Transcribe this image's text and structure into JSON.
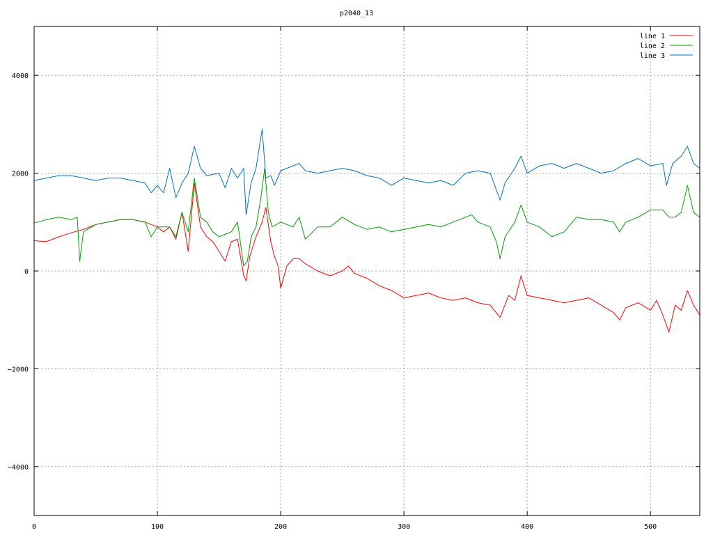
{
  "chart_data": {
    "type": "line",
    "title": "p2040_13",
    "xlabel": "",
    "ylabel": "",
    "xlim": [
      0,
      540
    ],
    "ylim": [
      -5000,
      5000
    ],
    "x_ticks": [
      0,
      100,
      200,
      300,
      400,
      500
    ],
    "y_ticks": [
      -4000,
      -2000,
      0,
      2000,
      4000
    ],
    "grid": true,
    "legend_position": "top-right",
    "series": [
      {
        "name": "line 1",
        "color": "#ff0000",
        "points": [
          [
            0,
            620
          ],
          [
            10,
            600
          ],
          [
            20,
            700
          ],
          [
            30,
            780
          ],
          [
            40,
            850
          ],
          [
            50,
            950
          ],
          [
            60,
            1000
          ],
          [
            70,
            1050
          ],
          [
            80,
            1050
          ],
          [
            90,
            1000
          ],
          [
            100,
            900
          ],
          [
            105,
            800
          ],
          [
            110,
            900
          ],
          [
            115,
            650
          ],
          [
            120,
            1200
          ],
          [
            125,
            400
          ],
          [
            130,
            1800
          ],
          [
            135,
            900
          ],
          [
            140,
            700
          ],
          [
            145,
            600
          ],
          [
            150,
            400
          ],
          [
            155,
            200
          ],
          [
            160,
            600
          ],
          [
            165,
            650
          ],
          [
            170,
            -100
          ],
          [
            172,
            -200
          ],
          [
            175,
            300
          ],
          [
            180,
            700
          ],
          [
            185,
            1000
          ],
          [
            188,
            1300
          ],
          [
            192,
            600
          ],
          [
            195,
            300
          ],
          [
            198,
            100
          ],
          [
            200,
            -350
          ],
          [
            205,
            100
          ],
          [
            210,
            250
          ],
          [
            215,
            250
          ],
          [
            220,
            150
          ],
          [
            230,
            0
          ],
          [
            240,
            -100
          ],
          [
            250,
            0
          ],
          [
            255,
            100
          ],
          [
            260,
            -50
          ],
          [
            270,
            -150
          ],
          [
            280,
            -300
          ],
          [
            290,
            -400
          ],
          [
            300,
            -550
          ],
          [
            310,
            -500
          ],
          [
            320,
            -450
          ],
          [
            330,
            -550
          ],
          [
            340,
            -600
          ],
          [
            350,
            -550
          ],
          [
            360,
            -650
          ],
          [
            370,
            -700
          ],
          [
            378,
            -950
          ],
          [
            385,
            -500
          ],
          [
            390,
            -600
          ],
          [
            395,
            -100
          ],
          [
            400,
            -500
          ],
          [
            410,
            -550
          ],
          [
            420,
            -600
          ],
          [
            430,
            -650
          ],
          [
            440,
            -600
          ],
          [
            450,
            -550
          ],
          [
            460,
            -700
          ],
          [
            470,
            -850
          ],
          [
            475,
            -1000
          ],
          [
            480,
            -750
          ],
          [
            490,
            -650
          ],
          [
            500,
            -800
          ],
          [
            505,
            -600
          ],
          [
            510,
            -900
          ],
          [
            515,
            -1250
          ],
          [
            520,
            -700
          ],
          [
            525,
            -800
          ],
          [
            530,
            -400
          ],
          [
            535,
            -700
          ],
          [
            540,
            -900
          ]
        ]
      },
      {
        "name": "line 2",
        "color": "#00a000",
        "points": [
          [
            0,
            980
          ],
          [
            10,
            1050
          ],
          [
            20,
            1100
          ],
          [
            30,
            1050
          ],
          [
            35,
            1100
          ],
          [
            37,
            200
          ],
          [
            40,
            800
          ],
          [
            50,
            950
          ],
          [
            60,
            1000
          ],
          [
            70,
            1050
          ],
          [
            80,
            1050
          ],
          [
            90,
            1000
          ],
          [
            95,
            700
          ],
          [
            100,
            900
          ],
          [
            110,
            900
          ],
          [
            115,
            700
          ],
          [
            120,
            1200
          ],
          [
            125,
            800
          ],
          [
            130,
            1900
          ],
          [
            135,
            1100
          ],
          [
            140,
            1000
          ],
          [
            145,
            800
          ],
          [
            150,
            700
          ],
          [
            160,
            800
          ],
          [
            165,
            1000
          ],
          [
            170,
            100
          ],
          [
            173,
            200
          ],
          [
            176,
            700
          ],
          [
            180,
            900
          ],
          [
            184,
            1500
          ],
          [
            187,
            2100
          ],
          [
            190,
            1200
          ],
          [
            193,
            900
          ],
          [
            200,
            1000
          ],
          [
            210,
            900
          ],
          [
            215,
            1100
          ],
          [
            220,
            650
          ],
          [
            230,
            900
          ],
          [
            240,
            900
          ],
          [
            250,
            1100
          ],
          [
            260,
            950
          ],
          [
            270,
            850
          ],
          [
            280,
            900
          ],
          [
            290,
            800
          ],
          [
            300,
            850
          ],
          [
            310,
            900
          ],
          [
            320,
            950
          ],
          [
            330,
            900
          ],
          [
            340,
            1000
          ],
          [
            350,
            1100
          ],
          [
            355,
            1150
          ],
          [
            360,
            1000
          ],
          [
            370,
            900
          ],
          [
            375,
            600
          ],
          [
            378,
            250
          ],
          [
            382,
            700
          ],
          [
            390,
            1000
          ],
          [
            395,
            1350
          ],
          [
            400,
            1000
          ],
          [
            410,
            900
          ],
          [
            420,
            700
          ],
          [
            430,
            800
          ],
          [
            440,
            1100
          ],
          [
            450,
            1050
          ],
          [
            460,
            1050
          ],
          [
            470,
            1000
          ],
          [
            475,
            800
          ],
          [
            480,
            1000
          ],
          [
            490,
            1100
          ],
          [
            500,
            1250
          ],
          [
            510,
            1250
          ],
          [
            515,
            1100
          ],
          [
            520,
            1100
          ],
          [
            525,
            1200
          ],
          [
            530,
            1750
          ],
          [
            535,
            1200
          ],
          [
            540,
            1100
          ]
        ]
      },
      {
        "name": "line 3",
        "color": "#0070c0",
        "points": [
          [
            0,
            1850
          ],
          [
            10,
            1900
          ],
          [
            20,
            1950
          ],
          [
            30,
            1950
          ],
          [
            40,
            1900
          ],
          [
            50,
            1850
          ],
          [
            60,
            1900
          ],
          [
            70,
            1900
          ],
          [
            80,
            1850
          ],
          [
            90,
            1800
          ],
          [
            95,
            1600
          ],
          [
            100,
            1750
          ],
          [
            105,
            1600
          ],
          [
            110,
            2100
          ],
          [
            115,
            1500
          ],
          [
            120,
            1800
          ],
          [
            125,
            2000
          ],
          [
            130,
            2550
          ],
          [
            135,
            2100
          ],
          [
            140,
            1950
          ],
          [
            150,
            2000
          ],
          [
            155,
            1700
          ],
          [
            160,
            2100
          ],
          [
            165,
            1900
          ],
          [
            170,
            2100
          ],
          [
            172,
            1150
          ],
          [
            176,
            1800
          ],
          [
            180,
            2100
          ],
          [
            185,
            2900
          ],
          [
            188,
            1900
          ],
          [
            192,
            1950
          ],
          [
            195,
            1750
          ],
          [
            200,
            2050
          ],
          [
            210,
            2150
          ],
          [
            215,
            2200
          ],
          [
            220,
            2050
          ],
          [
            230,
            2000
          ],
          [
            240,
            2050
          ],
          [
            250,
            2100
          ],
          [
            260,
            2050
          ],
          [
            270,
            1950
          ],
          [
            280,
            1900
          ],
          [
            290,
            1750
          ],
          [
            300,
            1900
          ],
          [
            310,
            1850
          ],
          [
            320,
            1800
          ],
          [
            330,
            1850
          ],
          [
            340,
            1750
          ],
          [
            350,
            2000
          ],
          [
            360,
            2050
          ],
          [
            370,
            2000
          ],
          [
            378,
            1450
          ],
          [
            382,
            1800
          ],
          [
            390,
            2100
          ],
          [
            395,
            2350
          ],
          [
            400,
            2000
          ],
          [
            410,
            2150
          ],
          [
            420,
            2200
          ],
          [
            430,
            2100
          ],
          [
            440,
            2200
          ],
          [
            450,
            2100
          ],
          [
            460,
            2000
          ],
          [
            470,
            2050
          ],
          [
            480,
            2200
          ],
          [
            490,
            2300
          ],
          [
            500,
            2150
          ],
          [
            510,
            2200
          ],
          [
            513,
            1750
          ],
          [
            518,
            2200
          ],
          [
            525,
            2350
          ],
          [
            530,
            2550
          ],
          [
            535,
            2200
          ],
          [
            540,
            2100
          ]
        ]
      }
    ]
  }
}
